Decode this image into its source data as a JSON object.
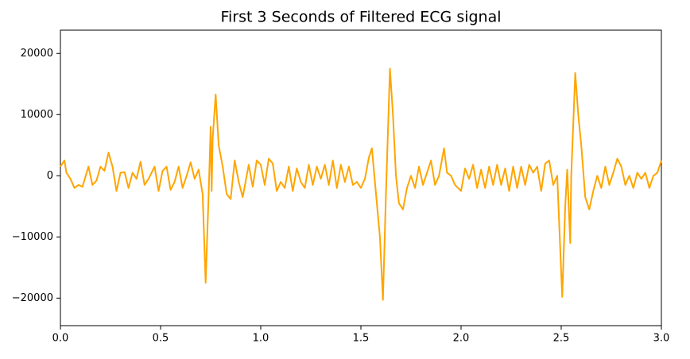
{
  "chart_data": {
    "type": "line",
    "title": "First 3 Seconds of Filtered ECG signal",
    "x": [
      0.0,
      0.02,
      0.03,
      0.05,
      0.07,
      0.09,
      0.11,
      0.14,
      0.16,
      0.18,
      0.2,
      0.22,
      0.24,
      0.26,
      0.28,
      0.3,
      0.32,
      0.34,
      0.36,
      0.38,
      0.4,
      0.42,
      0.44,
      0.47,
      0.49,
      0.51,
      0.53,
      0.55,
      0.57,
      0.59,
      0.61,
      0.63,
      0.65,
      0.67,
      0.69,
      0.71,
      0.725,
      0.74,
      0.75,
      0.755,
      0.76,
      0.775,
      0.79,
      0.81,
      0.83,
      0.85,
      0.87,
      0.89,
      0.91,
      0.94,
      0.96,
      0.98,
      1.0,
      1.02,
      1.04,
      1.06,
      1.08,
      1.1,
      1.12,
      1.14,
      1.16,
      1.18,
      1.2,
      1.22,
      1.24,
      1.26,
      1.28,
      1.3,
      1.32,
      1.34,
      1.36,
      1.38,
      1.4,
      1.42,
      1.44,
      1.46,
      1.48,
      1.5,
      1.52,
      1.54,
      1.555,
      1.57,
      1.595,
      1.61,
      1.625,
      1.645,
      1.66,
      1.675,
      1.69,
      1.71,
      1.73,
      1.75,
      1.77,
      1.79,
      1.81,
      1.83,
      1.85,
      1.87,
      1.89,
      1.915,
      1.93,
      1.95,
      1.97,
      2.0,
      2.02,
      2.04,
      2.06,
      2.08,
      2.1,
      2.12,
      2.14,
      2.16,
      2.18,
      2.2,
      2.22,
      2.24,
      2.26,
      2.28,
      2.3,
      2.32,
      2.34,
      2.36,
      2.38,
      2.4,
      2.42,
      2.44,
      2.46,
      2.48,
      2.505,
      2.52,
      2.53,
      2.545,
      2.55,
      2.57,
      2.585,
      2.6,
      2.62,
      2.64,
      2.66,
      2.68,
      2.7,
      2.72,
      2.74,
      2.76,
      2.78,
      2.8,
      2.82,
      2.84,
      2.86,
      2.88,
      2.9,
      2.92,
      2.94,
      2.96,
      2.98,
      3.0
    ],
    "series": [
      {
        "color": "#ffa500",
        "values": [
          1500,
          2500,
          500,
          -500,
          -2000,
          -1500,
          -1800,
          1500,
          -1500,
          -800,
          1500,
          800,
          3800,
          1500,
          -2500,
          500,
          600,
          -2000,
          500,
          -500,
          2300,
          -1500,
          -500,
          1500,
          -2500,
          800,
          1500,
          -2300,
          -1000,
          1500,
          -2000,
          0,
          2200,
          -500,
          1000,
          -3000,
          -17500,
          -3000,
          8000,
          -2500,
          6000,
          13300,
          5000,
          1500,
          -3000,
          -3800,
          2500,
          -1000,
          -3500,
          1800,
          -1800,
          2500,
          1800,
          -1500,
          2800,
          2000,
          -2500,
          -1000,
          -2000,
          1500,
          -2500,
          1200,
          -1000,
          -2000,
          1800,
          -1500,
          1500,
          -500,
          1800,
          -1500,
          2500,
          -2000,
          1800,
          -1000,
          1500,
          -1500,
          -1000,
          -2000,
          -500,
          3000,
          4500,
          -1000,
          -10000,
          -20300,
          -3000,
          17500,
          10000,
          0,
          -4500,
          -5500,
          -2000,
          0,
          -2000,
          1500,
          -1500,
          500,
          2500,
          -1500,
          0,
          4500,
          500,
          0,
          -1500,
          -2500,
          1200,
          -500,
          1800,
          -2000,
          1000,
          -2000,
          1500,
          -1500,
          1800,
          -1500,
          1200,
          -2500,
          1500,
          -2000,
          1500,
          -1500,
          1800,
          500,
          1500,
          -2500,
          2000,
          2500,
          -1500,
          0,
          -19800,
          -5000,
          1000,
          -11000,
          0,
          16800,
          10000,
          5000,
          -3500,
          -5500,
          -2500,
          0,
          -2000,
          1500,
          -1500,
          500,
          2800,
          1500,
          -1500,
          0,
          -2000,
          500,
          -500,
          500,
          -2000,
          0,
          500,
          2500
        ]
      }
    ],
    "xlim": [
      0,
      3
    ],
    "ylim": [
      -24500,
      23800
    ],
    "xticks": [
      {
        "value": 0,
        "label": "0.0"
      },
      0.5,
      {
        "value": 1,
        "label": "1.0"
      },
      1.5,
      {
        "value": 2,
        "label": "2.0"
      },
      2.5,
      {
        "value": 3,
        "label": "3.0"
      }
    ],
    "yticks": [
      {
        "value": -20000,
        "label": "−20000"
      },
      {
        "value": -10000,
        "label": "−10000"
      },
      0,
      10000,
      20000
    ]
  }
}
